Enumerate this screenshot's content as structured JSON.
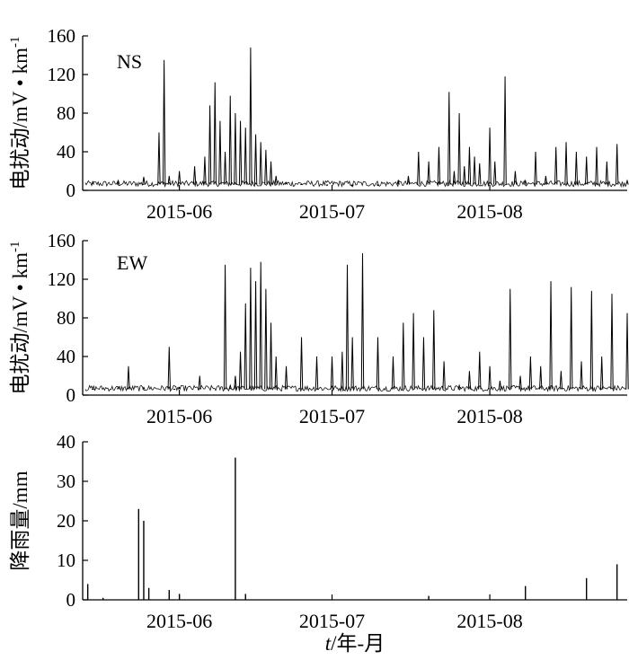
{
  "chart_data": [
    {
      "type": "line",
      "annotation": "NS",
      "ylabel": "电扰动/mV • km",
      "ylabel_superscript": "-1",
      "ylim": [
        0,
        160
      ],
      "yticks": [
        0,
        40,
        80,
        120,
        160
      ],
      "xlim": [
        "2015-05-13",
        "2015-08-28"
      ],
      "xticks": [
        "2015-06",
        "2015-07",
        "2015-08"
      ],
      "x": [
        "2015-05-15",
        "2015-05-20",
        "2015-05-25",
        "2015-05-28",
        "2015-05-29",
        "2015-05-30",
        "2015-06-01",
        "2015-06-04",
        "2015-06-06",
        "2015-06-07",
        "2015-06-08",
        "2015-06-09",
        "2015-06-10",
        "2015-06-11",
        "2015-06-12",
        "2015-06-13",
        "2015-06-14",
        "2015-06-15",
        "2015-06-16",
        "2015-06-17",
        "2015-06-18",
        "2015-06-19",
        "2015-06-20",
        "2015-06-22",
        "2015-06-25",
        "2015-06-30",
        "2015-07-05",
        "2015-07-10",
        "2015-07-14",
        "2015-07-16",
        "2015-07-18",
        "2015-07-20",
        "2015-07-22",
        "2015-07-24",
        "2015-07-25",
        "2015-07-26",
        "2015-07-27",
        "2015-07-28",
        "2015-07-29",
        "2015-07-30",
        "2015-08-01",
        "2015-08-02",
        "2015-08-04",
        "2015-08-06",
        "2015-08-08",
        "2015-08-10",
        "2015-08-12",
        "2015-08-14",
        "2015-08-16",
        "2015-08-18",
        "2015-08-20",
        "2015-08-22",
        "2015-08-24",
        "2015-08-26",
        "2015-08-28"
      ],
      "values": [
        8,
        10,
        14,
        60,
        135,
        15,
        20,
        25,
        35,
        88,
        112,
        72,
        40,
        98,
        80,
        72,
        65,
        148,
        58,
        50,
        42,
        30,
        15,
        8,
        6,
        5,
        4,
        5,
        10,
        15,
        40,
        30,
        45,
        102,
        20,
        80,
        25,
        45,
        35,
        28,
        65,
        30,
        118,
        20,
        10,
        40,
        15,
        45,
        50,
        40,
        35,
        45,
        30,
        48,
        10
      ]
    },
    {
      "type": "line",
      "annotation": "EW",
      "ylabel": "电扰动/mV • km",
      "ylabel_superscript": "-1",
      "ylim": [
        0,
        160
      ],
      "yticks": [
        0,
        40,
        80,
        120,
        160
      ],
      "xlim": [
        "2015-05-13",
        "2015-08-28"
      ],
      "xticks": [
        "2015-06",
        "2015-07",
        "2015-08"
      ],
      "x": [
        "2015-05-15",
        "2015-05-20",
        "2015-05-22",
        "2015-05-25",
        "2015-05-30",
        "2015-05-31",
        "2015-06-01",
        "2015-06-05",
        "2015-06-10",
        "2015-06-11",
        "2015-06-12",
        "2015-06-13",
        "2015-06-14",
        "2015-06-15",
        "2015-06-16",
        "2015-06-17",
        "2015-06-18",
        "2015-06-19",
        "2015-06-20",
        "2015-06-22",
        "2015-06-25",
        "2015-06-28",
        "2015-07-01",
        "2015-07-03",
        "2015-07-04",
        "2015-07-05",
        "2015-07-07",
        "2015-07-10",
        "2015-07-13",
        "2015-07-15",
        "2015-07-17",
        "2015-07-19",
        "2015-07-21",
        "2015-07-23",
        "2015-07-26",
        "2015-07-28",
        "2015-07-30",
        "2015-08-01",
        "2015-08-03",
        "2015-08-05",
        "2015-08-07",
        "2015-08-09",
        "2015-08-11",
        "2015-08-13",
        "2015-08-15",
        "2015-08-17",
        "2015-08-19",
        "2015-08-21",
        "2015-08-23",
        "2015-08-25",
        "2015-08-28"
      ],
      "values": [
        6,
        8,
        30,
        8,
        50,
        6,
        8,
        20,
        135,
        10,
        20,
        45,
        95,
        132,
        118,
        138,
        110,
        75,
        40,
        30,
        60,
        40,
        40,
        45,
        135,
        60,
        147,
        60,
        40,
        75,
        85,
        60,
        88,
        35,
        10,
        25,
        45,
        30,
        15,
        110,
        20,
        40,
        30,
        118,
        25,
        112,
        35,
        108,
        40,
        105,
        85
      ]
    },
    {
      "type": "bar",
      "ylabel": "降雨量/mm",
      "ylim": [
        0,
        40
      ],
      "yticks": [
        0,
        10,
        20,
        30,
        40
      ],
      "xlim": [
        "2015-05-13",
        "2015-08-28"
      ],
      "xticks": [
        "2015-06",
        "2015-07",
        "2015-08"
      ],
      "xlabel_italic": "t",
      "xlabel_rest": "/年-月",
      "x": [
        "2015-05-14",
        "2015-05-17",
        "2015-05-24",
        "2015-05-25",
        "2015-05-26",
        "2015-05-30",
        "2015-06-01",
        "2015-06-12",
        "2015-06-14",
        "2015-07-20",
        "2015-08-08",
        "2015-08-20",
        "2015-08-26"
      ],
      "values": [
        4,
        0.5,
        23,
        20,
        3,
        2.5,
        1.5,
        36,
        1.5,
        1,
        3.5,
        5.5,
        9
      ]
    }
  ]
}
